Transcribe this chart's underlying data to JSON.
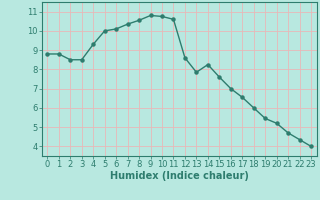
{
  "x": [
    0,
    1,
    2,
    3,
    4,
    5,
    6,
    7,
    8,
    9,
    10,
    11,
    12,
    13,
    14,
    15,
    16,
    17,
    18,
    19,
    20,
    21,
    22,
    23
  ],
  "y": [
    8.8,
    8.8,
    8.5,
    8.5,
    9.3,
    10.0,
    10.1,
    10.35,
    10.55,
    10.8,
    10.75,
    10.6,
    8.6,
    7.85,
    8.25,
    7.6,
    7.0,
    6.55,
    6.0,
    5.45,
    5.2,
    4.7,
    4.35,
    4.0
  ],
  "line_color": "#2e7d6e",
  "marker": "o",
  "marker_size": 2.2,
  "bg_color": "#b8e8e0",
  "grid_color": "#e8b8b8",
  "xlabel": "Humidex (Indice chaleur)",
  "xlim": [
    -0.5,
    23.5
  ],
  "ylim": [
    3.5,
    11.5
  ],
  "yticks": [
    4,
    5,
    6,
    7,
    8,
    9,
    10,
    11
  ],
  "xticks": [
    0,
    1,
    2,
    3,
    4,
    5,
    6,
    7,
    8,
    9,
    10,
    11,
    12,
    13,
    14,
    15,
    16,
    17,
    18,
    19,
    20,
    21,
    22,
    23
  ],
  "tick_label_fontsize": 6.0,
  "xlabel_fontsize": 7.0,
  "line_width": 1.0
}
